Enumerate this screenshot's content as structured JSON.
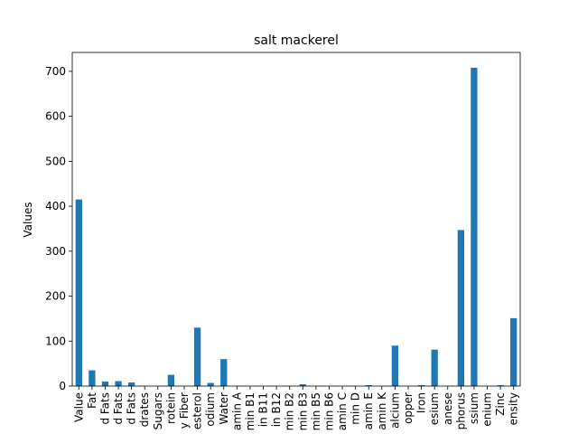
{
  "chart_data": {
    "type": "bar",
    "title": "salt mackerel",
    "xlabel": "",
    "ylabel": "Values",
    "ylim": [
      0,
      742
    ],
    "yticks": [
      0,
      100,
      200,
      300,
      400,
      500,
      600,
      700
    ],
    "bar_color": "#1f77b4",
    "categories": [
      "Value",
      "Fat",
      "d Fats",
      "d Fats",
      "d Fats",
      "drates",
      "Sugars",
      "rotein",
      "y Fiber",
      "esterol",
      "odium",
      "Water",
      "amin A",
      "min B1",
      "in B11",
      "in B12",
      "min B2",
      "min B3",
      "min B5",
      "min B6",
      "amin C",
      "min D",
      "amin E",
      "amin K",
      "alcium",
      "opper",
      "Iron",
      "esium",
      "anese",
      "phorus",
      "ssium",
      "enium",
      "Zinc",
      "ensity"
    ],
    "values": [
      415,
      35,
      10,
      11,
      8,
      0,
      0,
      25,
      0,
      130,
      7,
      60,
      0,
      0,
      0,
      0,
      0,
      4,
      0,
      0,
      0,
      0,
      2,
      0,
      90,
      0,
      2,
      81,
      0,
      347,
      708,
      0,
      2,
      151
    ]
  }
}
